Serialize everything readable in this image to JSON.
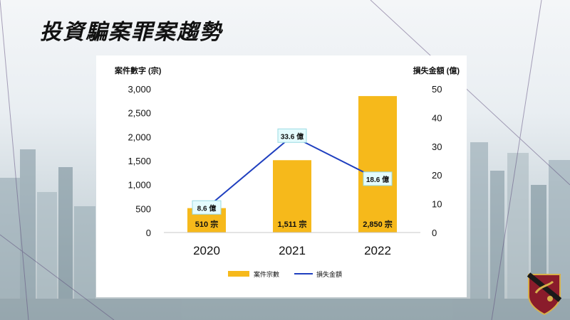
{
  "slide": {
    "title": "投資騙案罪案趨勢"
  },
  "chart_data": {
    "type": "bar",
    "categories": [
      "2020",
      "2021",
      "2022"
    ],
    "series": [
      {
        "name": "案件宗數",
        "type": "bar",
        "axis": "left",
        "values": [
          510,
          1511,
          2850
        ],
        "labels": [
          "510 宗",
          "1,511 宗",
          "2,850 宗"
        ],
        "color": "#f6b91b"
      },
      {
        "name": "損失金額",
        "type": "line",
        "axis": "right",
        "values": [
          8.6,
          33.6,
          18.6
        ],
        "labels": [
          "8.6 億",
          "33.6 億",
          "18.6 億"
        ],
        "color": "#1f3fbf"
      }
    ],
    "ylabel_left": "案件數字 (宗)",
    "ylabel_right": "損失金額 (億)",
    "ylim_left": [
      0,
      3000
    ],
    "ylim_right": [
      0,
      50
    ],
    "yticks_left": [
      "0",
      "500",
      "1,000",
      "1,500",
      "2,000",
      "2,500",
      "3,000"
    ],
    "yticks_right": [
      "0",
      "10",
      "20",
      "30",
      "40",
      "50"
    ],
    "grid": false,
    "legend_position": "bottom"
  }
}
